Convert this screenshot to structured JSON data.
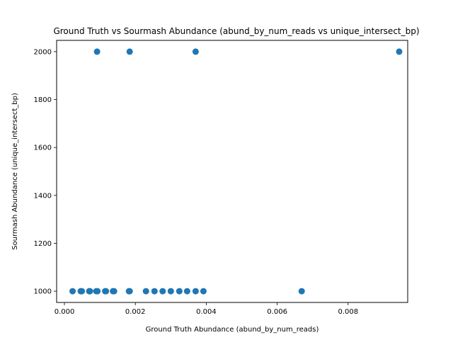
{
  "chart_data": {
    "type": "scatter",
    "title": "Ground Truth vs Sourmash Abundance (abund_by_num_reads vs unique_intersect_bp)",
    "xlabel": "Ground Truth Abundance (abund_by_num_reads)",
    "ylabel": "Sourmash Abundance (unique_intersect_bp)",
    "xlim": [
      -0.00022,
      0.00968
    ],
    "ylim": [
      953,
      2047
    ],
    "xticks": [
      0.0,
      0.002,
      0.004,
      0.006,
      0.008
    ],
    "xtick_labels": [
      "0.000",
      "0.002",
      "0.004",
      "0.006",
      "0.008"
    ],
    "yticks": [
      1000,
      1200,
      1400,
      1600,
      1800,
      2000
    ],
    "ytick_labels": [
      "1000",
      "1200",
      "1400",
      "1600",
      "1800",
      "2000"
    ],
    "grid": false,
    "point_color": "#1f77b4",
    "points": [
      {
        "x": 0.00023,
        "y": 1000
      },
      {
        "x": 0.00046,
        "y": 1000
      },
      {
        "x": 0.00049,
        "y": 1000
      },
      {
        "x": 0.0007,
        "y": 1000
      },
      {
        "x": 0.00072,
        "y": 1000
      },
      {
        "x": 0.0009,
        "y": 1000
      },
      {
        "x": 0.00093,
        "y": 1000
      },
      {
        "x": 0.00115,
        "y": 1000
      },
      {
        "x": 0.00117,
        "y": 1000
      },
      {
        "x": 0.00137,
        "y": 1000
      },
      {
        "x": 0.0014,
        "y": 1000
      },
      {
        "x": 0.00182,
        "y": 1000
      },
      {
        "x": 0.00184,
        "y": 1000
      },
      {
        "x": 0.0023,
        "y": 1000
      },
      {
        "x": 0.00254,
        "y": 1000
      },
      {
        "x": 0.00277,
        "y": 1000
      },
      {
        "x": 0.003,
        "y": 1000
      },
      {
        "x": 0.00324,
        "y": 1000
      },
      {
        "x": 0.00346,
        "y": 1000
      },
      {
        "x": 0.0037,
        "y": 1000
      },
      {
        "x": 0.00392,
        "y": 1000
      },
      {
        "x": 0.00669,
        "y": 1000
      },
      {
        "x": 0.00092,
        "y": 2000
      },
      {
        "x": 0.00184,
        "y": 2000
      },
      {
        "x": 0.0037,
        "y": 2000
      },
      {
        "x": 0.00944,
        "y": 2000
      }
    ]
  }
}
